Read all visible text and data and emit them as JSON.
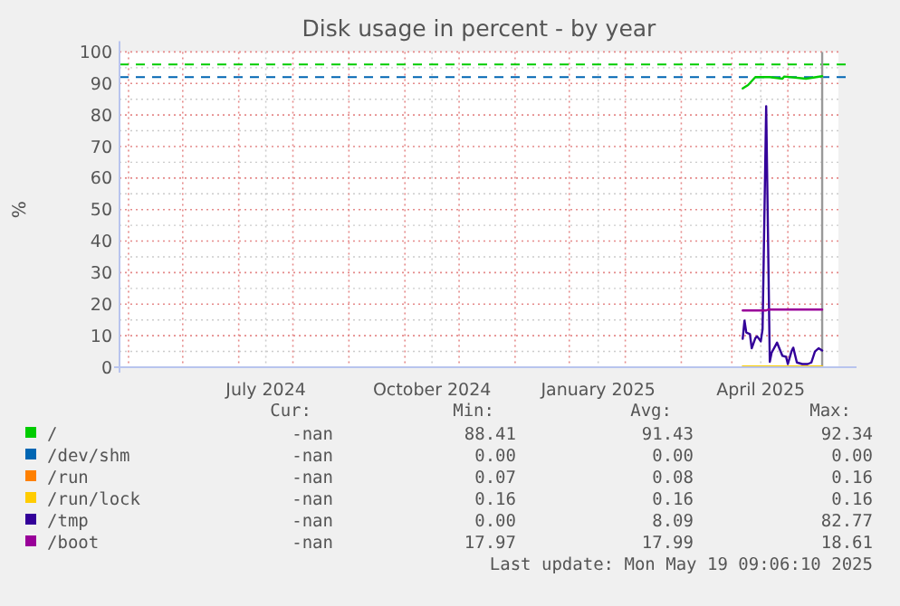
{
  "chart_data": {
    "type": "line",
    "title": "Disk usage in percent - by year",
    "ylabel": "%",
    "xlim": [
      "2024-04-11",
      "2025-05-14"
    ],
    "xticks": [
      {
        "value": "2024-04-16",
        "label": null
      },
      {
        "value": "2024-05-16",
        "label": null
      },
      {
        "value": "2024-06-16",
        "label": null
      },
      {
        "value": "2024-07-01",
        "label": "July 2024"
      },
      {
        "value": "2024-07-16",
        "label": null
      },
      {
        "value": "2024-08-16",
        "label": null
      },
      {
        "value": "2024-09-16",
        "label": null
      },
      {
        "value": "2024-10-01",
        "label": "October 2024"
      },
      {
        "value": "2024-10-16",
        "label": null
      },
      {
        "value": "2024-11-16",
        "label": null
      },
      {
        "value": "2024-12-16",
        "label": null
      },
      {
        "value": "2025-01-01",
        "label": "January 2025"
      },
      {
        "value": "2025-01-16",
        "label": null
      },
      {
        "value": "2025-02-16",
        "label": null
      },
      {
        "value": "2025-03-16",
        "label": null
      },
      {
        "value": "2025-04-01",
        "label": "April 2025"
      },
      {
        "value": "2025-04-16",
        "label": null
      }
    ],
    "ylim": [
      0,
      100
    ],
    "yticks": [
      0,
      10,
      20,
      30,
      40,
      50,
      60,
      70,
      80,
      90,
      100
    ],
    "grid": true,
    "legend": "bottom",
    "line_style": "solid",
    "marker": "none",
    "series": [
      {
        "name": "/",
        "color": "#00cc00",
        "x": [
          "2025-03-22",
          "2025-03-25",
          "2025-03-29",
          "2025-04-06",
          "2025-04-13",
          "2025-04-14",
          "2025-04-26",
          "2025-05-05"
        ],
        "values": [
          88.4,
          89.5,
          92,
          92,
          91.5,
          92.2,
          91.5,
          92.3
        ]
      },
      {
        "name": "/dev/shm",
        "color": "#0066b3"
      },
      {
        "name": "/run",
        "color": "#ff8000"
      },
      {
        "name": "/run/lock",
        "color": "#ffcc00",
        "x": [
          "2025-03-22",
          "2025-05-05"
        ],
        "values": [
          0.2,
          0.2
        ]
      },
      {
        "name": "/tmp",
        "color": "#330099",
        "x": [
          "2025-03-22",
          "2025-03-23",
          "2025-03-24",
          "2025-03-26",
          "2025-03-27",
          "2025-03-29",
          "2025-03-30",
          "2025-04-01",
          "2025-04-02",
          "2025-04-04",
          "2025-04-06",
          "2025-04-07",
          "2025-04-10",
          "2025-04-13",
          "2025-04-15",
          "2025-04-16",
          "2025-04-18",
          "2025-04-19",
          "2025-04-21",
          "2025-04-24",
          "2025-04-27",
          "2025-04-29",
          "2025-05-01",
          "2025-05-03",
          "2025-05-05"
        ],
        "values": [
          9,
          14.8,
          11,
          10.5,
          6,
          9.2,
          9.8,
          8.2,
          12,
          82.8,
          1.7,
          4.6,
          7.8,
          3.6,
          3.3,
          1,
          5,
          6.2,
          1.5,
          1,
          1,
          1.5,
          5,
          6,
          5.3
        ]
      },
      {
        "name": "/boot",
        "color": "#990099",
        "x": [
          "2025-03-22",
          "2025-04-04",
          "2025-04-05",
          "2025-05-05"
        ],
        "values": [
          18,
          18,
          18.3,
          18.3
        ]
      }
    ],
    "ref_lines": [
      {
        "axis": "y",
        "value": 96,
        "color": "#00cc00",
        "line_style": "dashed"
      },
      {
        "axis": "y",
        "value": 92,
        "color": "#0066b3",
        "line_style": "dashed"
      },
      {
        "axis": "x",
        "value": "2025-05-05",
        "color": "#999999",
        "line_style": "solid"
      }
    ],
    "annotations": [
      "Cur:",
      "Min:",
      "Avg:",
      "Max:",
      "-nan",
      "88.41",
      "91.43",
      "92.34",
      "-nan",
      "0.00",
      "0.00",
      "0.00",
      "-nan",
      "0.07",
      "0.08",
      "0.16",
      "-nan",
      "0.16",
      "0.16",
      "0.16",
      "-nan",
      "0.00",
      "8.09",
      "82.77",
      "-nan",
      "17.97",
      "17.99",
      "18.61",
      "Last update: Mon May 19 09:06:10 2025"
    ]
  }
}
